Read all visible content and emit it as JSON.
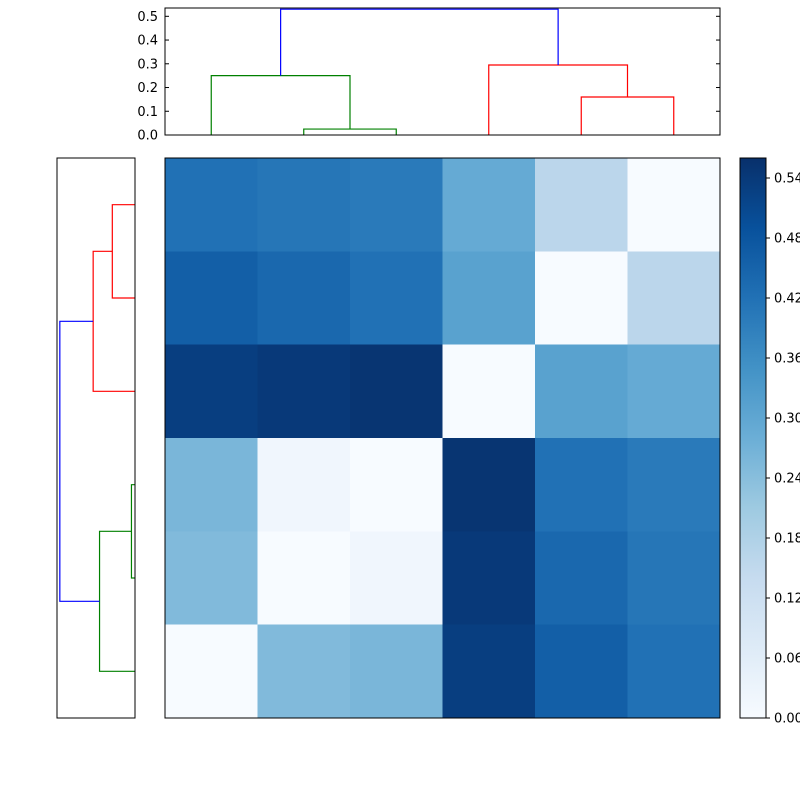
{
  "figure": {
    "background": "#ffffff",
    "axes_edge_color": "#000000"
  },
  "chart_data": {
    "type": "heatmap",
    "subtype": "clustermap",
    "title": "",
    "xlabel": "",
    "ylabel": "",
    "grid": false,
    "colormap": "Blues",
    "vmin": 0.0,
    "vmax": 0.56,
    "rows": 6,
    "cols": 6,
    "row_labels_visible": false,
    "col_labels_visible": false,
    "matrix": [
      [
        0.42,
        0.41,
        0.4,
        0.29,
        0.16,
        0.0
      ],
      [
        0.46,
        0.44,
        0.42,
        0.31,
        0.0,
        0.16
      ],
      [
        0.53,
        0.54,
        0.55,
        0.0,
        0.31,
        0.29
      ],
      [
        0.26,
        0.02,
        0.0,
        0.55,
        0.42,
        0.4
      ],
      [
        0.25,
        0.0,
        0.02,
        0.54,
        0.44,
        0.41
      ],
      [
        0.0,
        0.25,
        0.26,
        0.53,
        0.46,
        0.42
      ]
    ],
    "dendrogram_colors": {
      "cluster_green": "#008000",
      "cluster_red": "#ff0000",
      "root": "#0000ff"
    },
    "axes_edge_color": "#000000",
    "top_dendrogram": {
      "orientation": "top",
      "axis_max": 0.535,
      "tick_labels": [
        "0.5",
        "0.4",
        "0.3",
        "0.2",
        "0.1",
        "0.0"
      ],
      "tick_values": [
        0.5,
        0.4,
        0.3,
        0.2,
        0.1,
        0.0
      ],
      "links": [
        {
          "x1": 1.5,
          "h1": 0,
          "x2": 2.5,
          "h2": 0,
          "h": 0.025,
          "color": "#008000"
        },
        {
          "x1": 0.5,
          "h1": 0,
          "x2": 2.0,
          "h2": 0.025,
          "h": 0.25,
          "color": "#008000"
        },
        {
          "x1": 4.5,
          "h1": 0,
          "x2": 5.5,
          "h2": 0,
          "h": 0.16,
          "color": "#ff0000"
        },
        {
          "x1": 3.5,
          "h1": 0,
          "x2": 5.0,
          "h2": 0.16,
          "h": 0.295,
          "color": "#ff0000"
        },
        {
          "x1": 1.25,
          "h1": 0.25,
          "x2": 4.25,
          "h2": 0.295,
          "h": 0.53,
          "color": "#0000ff"
        }
      ]
    },
    "left_dendrogram": {
      "orientation": "left",
      "axis_max": 0.55,
      "tick_labels": [],
      "links": [
        {
          "x1": 0.5,
          "h1": 0,
          "x2": 1.5,
          "h2": 0,
          "h": 0.16,
          "color": "#ff0000"
        },
        {
          "x1": 2.5,
          "h1": 0,
          "x2": 1.0,
          "h2": 0.16,
          "h": 0.295,
          "color": "#ff0000"
        },
        {
          "x1": 3.5,
          "h1": 0,
          "x2": 4.5,
          "h2": 0,
          "h": 0.025,
          "color": "#008000"
        },
        {
          "x1": 4.0,
          "h1": 0.025,
          "x2": 5.5,
          "h2": 0,
          "h": 0.25,
          "color": "#008000"
        },
        {
          "x1": 1.75,
          "h1": 0.295,
          "x2": 4.75,
          "h2": 0.25,
          "h": 0.53,
          "color": "#0000ff"
        }
      ]
    },
    "colorbar": {
      "orientation": "vertical",
      "position": "right",
      "min_color": "#f7fbff",
      "max_color": "#08306b",
      "tick_labels": [
        "0.54",
        "0.48",
        "0.42",
        "0.36",
        "0.30",
        "0.24",
        "0.18",
        "0.12",
        "0.06",
        "0.00"
      ],
      "tick_values": [
        0.54,
        0.48,
        0.42,
        0.36,
        0.3,
        0.24,
        0.18,
        0.12,
        0.06,
        0.0
      ]
    }
  }
}
